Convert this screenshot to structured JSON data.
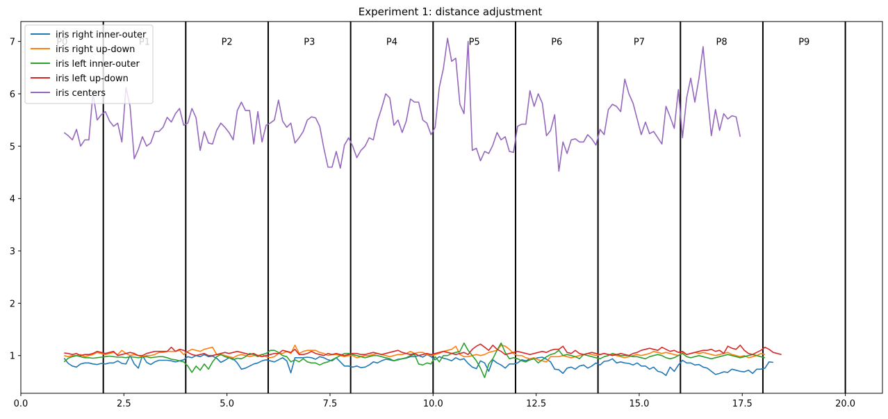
{
  "chart_data": {
    "type": "line",
    "title": "Experiment 1: distance adjustment",
    "xlabel": "",
    "ylabel": "",
    "xlim": [
      0,
      20.9
    ],
    "ylim": [
      0.28,
      7.38
    ],
    "x_ticks": [
      0,
      2.5,
      5,
      7.5,
      10,
      12.5,
      15,
      17.5,
      20
    ],
    "x_tick_labels": [
      "0.0",
      "2.5",
      "5.0",
      "7.5",
      "10.0",
      "12.5",
      "15.0",
      "17.5",
      "20.0"
    ],
    "y_ticks": [
      1,
      2,
      3,
      4,
      5,
      6,
      7
    ],
    "y_tick_labels": [
      "1",
      "2",
      "3",
      "4",
      "5",
      "6",
      "7"
    ],
    "grid": false,
    "legend_position": "top-left",
    "segment_boundaries": [
      2,
      4,
      6,
      8,
      10,
      12,
      14,
      16,
      18,
      20
    ],
    "segment_labels": [
      {
        "label": "P0",
        "x": 1.0
      },
      {
        "label": "P1",
        "x": 3.0
      },
      {
        "label": "P2",
        "x": 5.0
      },
      {
        "label": "P3",
        "x": 7.0
      },
      {
        "label": "P4",
        "x": 9.0
      },
      {
        "label": "P5",
        "x": 11.0
      },
      {
        "label": "P6",
        "x": 13.0
      },
      {
        "label": "P7",
        "x": 15.0
      },
      {
        "label": "P8",
        "x": 17.0
      },
      {
        "label": "P9",
        "x": 19.0
      }
    ],
    "segment_label_y": 7.0,
    "x_start": 1.05,
    "x_step": 0.1,
    "series": [
      {
        "name": "iris right inner-outer",
        "color": "#1f77b4",
        "values": [
          0.95,
          0.85,
          0.8,
          0.78,
          0.84,
          0.86,
          0.86,
          0.84,
          0.83,
          0.85,
          0.84,
          0.86,
          0.86,
          0.9,
          0.85,
          0.84,
          1.0,
          0.84,
          0.76,
          1.0,
          0.87,
          0.83,
          0.88,
          0.91,
          0.91,
          0.91,
          0.9,
          0.88,
          0.9,
          0.92,
          0.98,
          0.96,
          1.0,
          0.98,
          1.02,
          0.98,
          0.99,
          0.95,
          0.87,
          0.91,
          0.96,
          0.94,
          0.86,
          0.74,
          0.76,
          0.8,
          0.84,
          0.86,
          0.9,
          0.92,
          0.9,
          0.88,
          0.92,
          0.96,
          0.9,
          0.67,
          0.96,
          0.96,
          0.96,
          0.97,
          0.96,
          0.93,
          0.98,
          0.96,
          0.92,
          0.9,
          0.96,
          0.88,
          0.8,
          0.8,
          0.78,
          0.8,
          0.77,
          0.78,
          0.82,
          0.88,
          0.86,
          0.9,
          0.93,
          0.92,
          0.9,
          0.93,
          0.94,
          0.95,
          0.98,
          0.98,
          1.0,
          0.97,
          1.02,
          0.98,
          0.92,
          0.98,
          0.95,
          0.93,
          0.9,
          0.96,
          0.92,
          0.94,
          0.85,
          0.78,
          0.75,
          0.9,
          0.86,
          0.7,
          0.92,
          0.86,
          0.82,
          0.76,
          0.84,
          0.84,
          0.86,
          0.92,
          0.9,
          0.94,
          0.94,
          0.96,
          0.97,
          0.93,
          0.88,
          0.74,
          0.73,
          0.66,
          0.76,
          0.78,
          0.74,
          0.8,
          0.82,
          0.76,
          0.8,
          0.86,
          0.82,
          0.89,
          0.9,
          0.94,
          0.86,
          0.88,
          0.86,
          0.85,
          0.82,
          0.86,
          0.8,
          0.8,
          0.74,
          0.78,
          0.7,
          0.68,
          0.62,
          0.78,
          0.7,
          0.82,
          0.91,
          0.86,
          0.86,
          0.82,
          0.83,
          0.78,
          0.76,
          0.7,
          0.64,
          0.66,
          0.69,
          0.68,
          0.74,
          0.72,
          0.7,
          0.69,
          0.72,
          0.66,
          0.74,
          0.74,
          0.76,
          0.88,
          0.87
        ]
      },
      {
        "name": "iris right up-down",
        "color": "#ff7f0e",
        "values": [
          1.0,
          0.98,
          1.0,
          1.0,
          1.02,
          0.98,
          1.0,
          1.02,
          1.06,
          1.04,
          1.02,
          1.04,
          1.06,
          1.02,
          1.1,
          1.04,
          1.0,
          1.02,
          1.0,
          0.98,
          1.0,
          1.0,
          1.02,
          1.06,
          1.06,
          1.08,
          1.08,
          1.08,
          1.1,
          1.02,
          1.08,
          1.12,
          1.1,
          1.08,
          1.12,
          1.14,
          1.16,
          1.02,
          1.02,
          1.0,
          0.98,
          0.96,
          1.0,
          1.02,
          1.0,
          0.98,
          1.0,
          1.0,
          1.02,
          0.98,
          0.96,
          0.98,
          1.04,
          1.04,
          1.08,
          1.04,
          1.2,
          1.04,
          1.08,
          1.1,
          1.1,
          1.1,
          1.06,
          1.04,
          1.0,
          1.02,
          1.02,
          1.0,
          0.98,
          1.0,
          1.0,
          0.96,
          0.98,
          1.0,
          1.0,
          1.02,
          1.04,
          1.02,
          1.0,
          0.98,
          1.0,
          1.02,
          1.02,
          1.04,
          1.08,
          1.04,
          1.06,
          1.06,
          1.02,
          1.0,
          1.02,
          1.04,
          1.08,
          1.1,
          1.12,
          1.18,
          1.02,
          0.98,
          0.98,
          1.0,
          1.02,
          1.0,
          1.02,
          1.06,
          1.08,
          1.1,
          1.2,
          1.18,
          1.12,
          1.04,
          1.0,
          1.0,
          0.96,
          0.94,
          0.96,
          0.92,
          0.9,
          0.88,
          0.98,
          0.98,
          0.98,
          1.0,
          0.98,
          0.96,
          0.98,
          1.0,
          1.02,
          1.04,
          1.02,
          1.0,
          1.02,
          1.04,
          1.02,
          1.02,
          1.0,
          0.98,
          0.96,
          0.98,
          1.0,
          1.02,
          1.0,
          1.02,
          1.04,
          1.08,
          1.06,
          1.04,
          1.06,
          1.04,
          1.02,
          1.0,
          1.06,
          1.02,
          1.04,
          1.06,
          1.04,
          1.06,
          1.04,
          1.02,
          1.0,
          1.02,
          1.04,
          1.06,
          1.02,
          1.0,
          0.98,
          1.0,
          0.96,
          0.98,
          1.0,
          1.04,
          1.02
        ]
      },
      {
        "name": "iris left inner-outer",
        "color": "#2ca02c",
        "values": [
          0.88,
          0.95,
          0.98,
          1.0,
          0.98,
          0.96,
          0.96,
          0.95,
          0.96,
          0.97,
          0.98,
          0.99,
          0.98,
          0.97,
          0.97,
          0.96,
          0.98,
          0.97,
          0.96,
          0.97,
          0.98,
          0.96,
          0.97,
          0.98,
          0.98,
          0.96,
          0.93,
          0.92,
          0.9,
          0.88,
          0.8,
          0.68,
          0.8,
          0.72,
          0.84,
          0.74,
          0.88,
          0.98,
          1.02,
          0.98,
          0.96,
          0.92,
          0.95,
          0.94,
          0.98,
          1.04,
          1.02,
          0.98,
          1.02,
          1.04,
          1.1,
          1.1,
          1.06,
          1.0,
          0.98,
          0.88,
          0.92,
          0.88,
          0.94,
          0.88,
          0.86,
          0.86,
          0.82,
          0.86,
          0.88,
          0.92,
          0.96,
          1.0,
          1.04,
          1.04,
          1.02,
          1.0,
          0.98,
          0.96,
          0.98,
          1.0,
          1.0,
          0.98,
          0.96,
          0.94,
          0.9,
          0.92,
          0.94,
          0.96,
          1.0,
          1.02,
          0.84,
          0.82,
          0.86,
          0.84,
          0.98,
          0.88,
          1.0,
          1.0,
          1.04,
          1.06,
          1.08,
          1.24,
          1.1,
          1.0,
          0.9,
          0.76,
          0.58,
          0.84,
          0.94,
          1.1,
          1.24,
          1.06,
          0.94,
          0.96,
          0.94,
          0.9,
          0.88,
          0.92,
          0.94,
          0.86,
          0.92,
          0.98,
          1.02,
          1.04,
          1.1,
          1.0,
          1.02,
          1.0,
          0.98,
          0.94,
          1.02,
          1.0,
          0.98,
          0.96,
          0.94,
          0.98,
          1.0,
          1.04,
          1.02,
          1.0,
          1.0,
          1.0,
          0.98,
          0.98,
          0.96,
          0.94,
          0.98,
          1.0,
          1.02,
          1.0,
          0.96,
          0.94,
          0.96,
          1.0,
          1.04,
          0.98,
          0.96,
          0.98,
          1.0,
          0.98,
          0.96,
          0.94,
          0.96,
          0.98,
          1.0,
          1.02,
          1.0,
          0.98,
          0.96,
          0.98,
          1.0,
          1.02,
          1.0,
          0.98,
          0.96
        ]
      },
      {
        "name": "iris left up-down",
        "color": "#d62728",
        "values": [
          1.05,
          1.04,
          1.02,
          1.04,
          1.0,
          1.02,
          1.02,
          1.04,
          1.08,
          1.06,
          1.04,
          1.06,
          1.08,
          1.0,
          1.02,
          1.04,
          1.06,
          1.04,
          1.0,
          1.0,
          1.04,
          1.06,
          1.08,
          1.08,
          1.08,
          1.08,
          1.16,
          1.08,
          1.12,
          1.1,
          1.06,
          1.02,
          1.0,
          1.02,
          1.04,
          1.0,
          1.0,
          1.02,
          1.04,
          1.06,
          1.04,
          1.06,
          1.08,
          1.06,
          1.04,
          1.02,
          1.04,
          1.0,
          0.98,
          1.0,
          1.02,
          1.04,
          1.04,
          1.1,
          1.08,
          1.06,
          1.12,
          1.02,
          1.02,
          1.04,
          1.08,
          1.04,
          1.02,
          1.0,
          1.04,
          1.02,
          1.04,
          1.02,
          1.0,
          1.02,
          1.04,
          1.04,
          1.02,
          1.02,
          1.04,
          1.06,
          1.04,
          1.02,
          1.04,
          1.06,
          1.08,
          1.1,
          1.06,
          1.04,
          1.02,
          1.04,
          1.0,
          1.02,
          1.04,
          1.02,
          1.04,
          1.06,
          1.08,
          1.06,
          1.04,
          1.02,
          1.04,
          1.06,
          1.02,
          1.12,
          1.18,
          1.22,
          1.16,
          1.1,
          1.2,
          1.12,
          1.08,
          1.02,
          1.04,
          1.06,
          1.08,
          1.06,
          1.04,
          1.02,
          1.04,
          1.06,
          1.08,
          1.06,
          1.1,
          1.12,
          1.12,
          1.18,
          1.06,
          1.04,
          1.1,
          1.04,
          1.02,
          1.04,
          1.06,
          1.04,
          1.02,
          1.04,
          1.02,
          1.0,
          1.02,
          1.04,
          1.02,
          1.0,
          1.04,
          1.06,
          1.1,
          1.12,
          1.14,
          1.12,
          1.1,
          1.16,
          1.12,
          1.08,
          1.1,
          1.06,
          1.08,
          1.02,
          1.04,
          1.06,
          1.08,
          1.1,
          1.1,
          1.12,
          1.08,
          1.1,
          1.04,
          1.18,
          1.14,
          1.12,
          1.2,
          1.1,
          1.04,
          1.02,
          1.06,
          1.1,
          1.16,
          1.12,
          1.06,
          1.04,
          1.02
        ]
      },
      {
        "name": "iris centers",
        "color": "#9467bd",
        "values": [
          5.26,
          5.2,
          5.12,
          5.32,
          5.0,
          5.12,
          5.12,
          6.02,
          5.5,
          5.6,
          5.66,
          5.48,
          5.38,
          5.44,
          5.08,
          6.12,
          5.76,
          4.76,
          4.94,
          5.18,
          5.0,
          5.06,
          5.28,
          5.28,
          5.36,
          5.55,
          5.46,
          5.62,
          5.72,
          5.4,
          5.44,
          5.72,
          5.54,
          4.92,
          5.28,
          5.06,
          5.04,
          5.3,
          5.44,
          5.36,
          5.26,
          5.12,
          5.68,
          5.84,
          5.68,
          5.68,
          5.04,
          5.66,
          5.08,
          5.4,
          5.44,
          5.5,
          5.88,
          5.48,
          5.36,
          5.44,
          5.06,
          5.16,
          5.28,
          5.5,
          5.56,
          5.54,
          5.38,
          4.96,
          4.6,
          4.6,
          4.9,
          4.58,
          5.02,
          5.16,
          5.0,
          4.78,
          4.92,
          5.0,
          5.16,
          5.12,
          5.48,
          5.72,
          6.0,
          5.92,
          5.4,
          5.5,
          5.26,
          5.48,
          5.9,
          5.84,
          5.84,
          5.5,
          5.44,
          5.22,
          5.36,
          6.12,
          6.48,
          7.06,
          6.62,
          6.68,
          5.8,
          5.62,
          7.0,
          4.92,
          4.96,
          4.72,
          4.9,
          4.86,
          5.02,
          5.26,
          5.12,
          5.18,
          4.9,
          4.88,
          5.38,
          5.42,
          5.42,
          6.06,
          5.76,
          6.0,
          5.82,
          5.2,
          5.3,
          5.6,
          4.52,
          5.08,
          4.86,
          5.12,
          5.14,
          5.08,
          5.08,
          5.22,
          5.14,
          5.02,
          5.32,
          5.22,
          5.7,
          5.8,
          5.76,
          5.66,
          6.28,
          6.0,
          5.82,
          5.52,
          5.22,
          5.46,
          5.24,
          5.28,
          5.16,
          5.04,
          5.76,
          5.56,
          5.34,
          6.08,
          5.16,
          5.92,
          6.3,
          5.84,
          6.3,
          6.9,
          6.0,
          5.2,
          5.7,
          5.3,
          5.62,
          5.52,
          5.58,
          5.56,
          5.18
        ]
      }
    ]
  }
}
